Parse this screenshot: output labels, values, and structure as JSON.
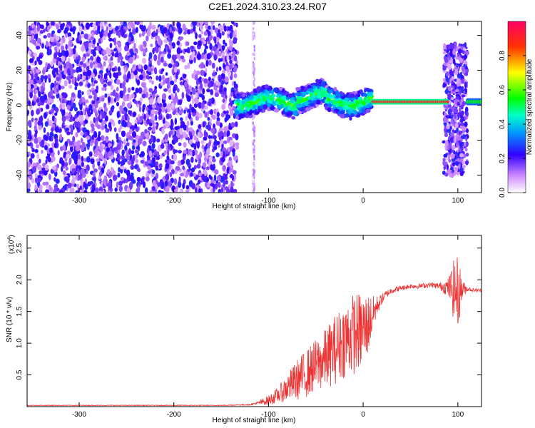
{
  "title": "C2E1.2024.310.23.24.R07",
  "chart_data": [
    {
      "type": "heatmap",
      "title": "C2E1.2024.310.23.24.R07",
      "xlabel": "Height of straight line (km)",
      "ylabel": "Frequency (Hz)",
      "xlim": [
        -355,
        125
      ],
      "ylim": [
        -50,
        48
      ],
      "x_ticks": [
        -300,
        -200,
        -100,
        0,
        100
      ],
      "y_ticks": [
        -40,
        -20,
        0,
        20,
        40
      ],
      "colorbar": {
        "label": "Normalized spectral amplitude",
        "range": [
          0,
          1
        ],
        "ticks": [
          0.0,
          0.2,
          0.4,
          0.6,
          0.8
        ],
        "tick_labels": [
          "0.0",
          "0.2",
          "0.4",
          "0.6",
          "0.8"
        ]
      },
      "regions": [
        {
          "x_range": [
            -355,
            -133
          ],
          "frequency_range": [
            -50,
            48
          ],
          "amplitude": "0.1-0.25 speckle"
        },
        {
          "x_range": [
            -118,
            -115
          ],
          "frequency_range": [
            -50,
            48
          ],
          "amplitude": "0.05-0.15 faint"
        },
        {
          "x_range": [
            -135,
            10
          ],
          "frequency_center": 2,
          "frequency_halfwidth": 7,
          "amplitude": "0.3-0.55 wavy band"
        },
        {
          "x_range": [
            10,
            90
          ],
          "frequency_center": 2,
          "frequency_halfwidth": 2,
          "amplitude": "0.8-0.95 narrow line"
        },
        {
          "x_range": [
            85,
            110
          ],
          "frequency_range": [
            -40,
            35
          ],
          "amplitude": "0.1-0.3 speckle"
        },
        {
          "x_range": [
            110,
            125
          ],
          "frequency_center": 2,
          "frequency_halfwidth": 3,
          "amplitude": "0.4-0.6 band"
        }
      ]
    },
    {
      "type": "line",
      "xlabel": "Height of straight line (km)",
      "ylabel": "SNR (10 * v/v)",
      "y_multiplier_label": "(x10",
      "y_multiplier_exp": "4",
      "xlim": [
        -355,
        125
      ],
      "ylim": [
        0,
        2.7
      ],
      "x_ticks": [
        -300,
        -200,
        -100,
        0,
        100
      ],
      "y_ticks": [
        0.5,
        1.0,
        1.5,
        2.0,
        2.5
      ],
      "y_tick_labels": [
        "0.5",
        "1.0",
        "1.5",
        "2.0",
        "2.5"
      ],
      "series": [
        {
          "color": "#ee3333",
          "x": [
            -355,
            -300,
            -250,
            -200,
            -150,
            -120,
            -110,
            -100,
            -90,
            -80,
            -70,
            -60,
            -50,
            -40,
            -30,
            -20,
            -10,
            0,
            5,
            10,
            15,
            20,
            25,
            30,
            40,
            50,
            60,
            70,
            80,
            90,
            95,
            100,
            105,
            110,
            115,
            125
          ],
          "values": [
            0.02,
            0.02,
            0.02,
            0.02,
            0.02,
            0.03,
            0.06,
            0.1,
            0.18,
            0.3,
            0.42,
            0.52,
            0.65,
            0.75,
            0.9,
            1.05,
            1.15,
            1.2,
            1.3,
            1.45,
            1.6,
            1.7,
            1.78,
            1.83,
            1.87,
            1.9,
            1.9,
            1.92,
            1.9,
            1.88,
            1.85,
            1.8,
            1.85,
            1.86,
            1.84,
            1.83
          ],
          "noise_amplitude": [
            0.005,
            0.005,
            0.005,
            0.005,
            0.005,
            0.01,
            0.03,
            0.08,
            0.12,
            0.22,
            0.32,
            0.38,
            0.42,
            0.48,
            0.55,
            0.6,
            0.65,
            0.6,
            0.5,
            0.3,
            0.15,
            0.08,
            0.06,
            0.05,
            0.04,
            0.04,
            0.04,
            0.04,
            0.05,
            0.15,
            0.45,
            0.6,
            0.15,
            0.04,
            0.03,
            0.03
          ]
        }
      ]
    }
  ]
}
